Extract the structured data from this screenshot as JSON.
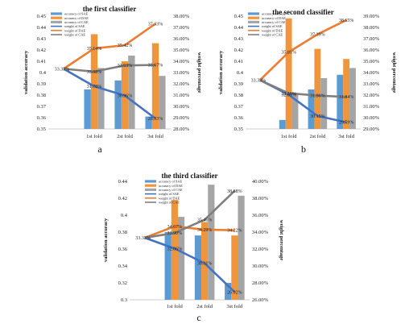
{
  "colors": {
    "sae": "#5b9bd5",
    "dae": "#f0953a",
    "cae": "#a5a5a5",
    "wsae": "#4472c4",
    "wdae": "#ed7d31",
    "wcae": "#7f7f7f"
  },
  "chart_data": [
    {
      "type": "bar",
      "panel_label": "a",
      "title": "the first classifier",
      "ylabel": "validation accuracy",
      "y2label": "weight percentage",
      "ylim": [
        0.35,
        0.45
      ],
      "yticks": [
        "0.35",
        "0.36",
        "0.37",
        "0.38",
        "0.39",
        "0.4",
        "0.41",
        "0.42",
        "0.43",
        "0.44",
        "0.45"
      ],
      "y2lim": [
        28.0,
        38.0
      ],
      "y2ticks": [
        "28.00%",
        "29.00%",
        "30.00%",
        "31.00%",
        "32.00%",
        "33.00%",
        "34.00%",
        "35.00%",
        "36.00%",
        "37.00%",
        "38.00%"
      ],
      "categories": [
        "",
        "1st fold",
        "2st fold",
        "3st fold"
      ],
      "bar_series": [
        {
          "name": "accuracy of SAE",
          "values": [
            null,
            0.385,
            0.393,
            0.361
          ]
        },
        {
          "name": "accuracy of DAE",
          "values": [
            null,
            0.434,
            0.41,
            0.426
          ]
        },
        {
          "name": "accuracy of CAE",
          "values": [
            null,
            0.404,
            0.415,
            0.397
          ]
        }
      ],
      "line_series": [
        {
          "name": "weight of SAE",
          "values": [
            33.33,
            31.78,
            30.96,
            28.93
          ],
          "labels": [
            "33.33%",
            "31.78%",
            "30.96%",
            "28.93%"
          ]
        },
        {
          "name": "weight of DAE",
          "values": [
            33.33,
            35.14,
            35.42,
            37.33
          ],
          "labels": [
            "",
            "35.14%",
            "35.42%",
            "37.33%"
          ]
        },
        {
          "name": "weight of CAE",
          "values": [
            33.33,
            33.08,
            33.63,
            33.67
          ],
          "labels": [
            "",
            "33.08%",
            "33.63%",
            "33.67%"
          ]
        }
      ]
    },
    {
      "type": "bar",
      "panel_label": "b",
      "title": "the second classifier",
      "ylabel": "validation accuracy",
      "y2label": "weight percentage",
      "ylim": [
        0.35,
        0.45
      ],
      "yticks": [
        "0.35",
        "0.36",
        "0.37",
        "0.38",
        "0.39",
        "0.4",
        "0.41",
        "0.42",
        "0.43",
        "0.44",
        "0.45"
      ],
      "y2lim": [
        29.0,
        39.0
      ],
      "y2ticks": [
        "29.00%",
        "30.00%",
        "31.00%",
        "32.00%",
        "33.00%",
        "34.00%",
        "35.00%",
        "36.00%",
        "37.00%",
        "38.00%",
        "39.00%"
      ],
      "categories": [
        "",
        "1st fold",
        "2st fold",
        "3st fold"
      ],
      "bar_series": [
        {
          "name": "accuracy of SAE",
          "values": [
            null,
            0.358,
            0.385,
            0.398
          ]
        },
        {
          "name": "accuracy of DAE",
          "values": [
            null,
            0.448,
            0.421,
            0.412
          ]
        },
        {
          "name": "accuracy of CAE",
          "values": [
            null,
            0.382,
            0.395,
            0.404
          ]
        }
      ],
      "line_series": [
        {
          "name": "weight of SAE",
          "values": [
            33.33,
            32.03,
            30.15,
            29.59
          ],
          "labels": [
            "33.33%",
            "32.03%",
            "30.15%",
            "29.59%"
          ]
        },
        {
          "name": "weight of DAE",
          "values": [
            33.33,
            35.81,
            37.39,
            38.65
          ],
          "labels": [
            "",
            "35.81%",
            "37.39%",
            "38.65%"
          ]
        },
        {
          "name": "weight of CAE",
          "values": [
            33.33,
            32.16,
            31.96,
            31.84
          ],
          "labels": [
            "",
            "32.16%",
            "31.96%",
            "31.84%"
          ]
        }
      ]
    },
    {
      "type": "bar",
      "panel_label": "c",
      "title": "the third classifier",
      "ylabel": "validation accuracy",
      "y2label": "weight percentage",
      "ylim": [
        0.3,
        0.44
      ],
      "yticks": [
        "0.3",
        "0.32",
        "0.34",
        "0.36",
        "0.38",
        "0.4",
        "0.42",
        "0.44"
      ],
      "y2lim": [
        26.0,
        40.0
      ],
      "y2ticks": [
        "26.00%",
        "28.00%",
        "30.00%",
        "32.00%",
        "34.00%",
        "36.00%",
        "38.00%",
        "40.00%"
      ],
      "categories": [
        "",
        "1st fold",
        "2st fold",
        "3st fold"
      ],
      "bar_series": [
        {
          "name": "accuracy of SAE",
          "values": [
            null,
            0.38,
            0.376,
            0.32
          ]
        },
        {
          "name": "accuracy of DAE",
          "values": [
            null,
            0.418,
            0.392,
            0.376
          ]
        },
        {
          "name": "accuracy of CAE",
          "values": [
            null,
            0.398,
            0.436,
            0.423
          ]
        }
      ],
      "line_series": [
        {
          "name": "weight of SAE",
          "values": [
            33.33,
            32.06,
            30.31,
            26.92
          ],
          "labels": [
            "33.33%",
            "32.06%",
            "30.31%",
            "26.92%"
          ]
        },
        {
          "name": "weight of DAE",
          "values": [
            33.33,
            34.67,
            34.29,
            34.22
          ],
          "labels": [
            "",
            "34.67%",
            "34.29%",
            "34.22%"
          ]
        },
        {
          "name": "weight of CAE",
          "values": [
            33.33,
            33.9,
            35.46,
            38.88
          ],
          "labels": [
            "",
            "33.90%",
            "35.46%",
            "38.88%"
          ]
        }
      ]
    }
  ]
}
